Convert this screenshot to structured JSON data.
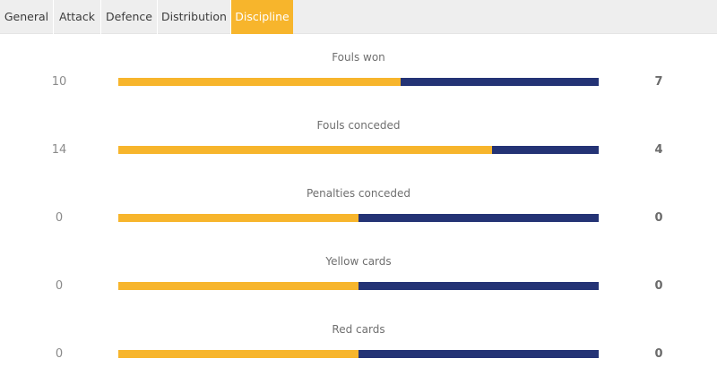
{
  "tabs": [
    {
      "label": "General",
      "active": false
    },
    {
      "label": "Attack",
      "active": false
    },
    {
      "label": "Defence",
      "active": false
    },
    {
      "label": "Distribution",
      "active": false
    },
    {
      "label": "Discipline",
      "active": true
    }
  ],
  "colors": {
    "home": "#f7b52c",
    "away": "#243375",
    "tab_active": "#f7b52c"
  },
  "stats": [
    {
      "label": "Fouls won",
      "home": "10",
      "away": "7",
      "home_share": 0.588
    },
    {
      "label": "Fouls conceded",
      "home": "14",
      "away": "4",
      "home_share": 0.778
    },
    {
      "label": "Penalties conceded",
      "home": "0",
      "away": "0",
      "home_share": 0.5
    },
    {
      "label": "Yellow cards",
      "home": "0",
      "away": "0",
      "home_share": 0.5
    },
    {
      "label": "Red cards",
      "home": "0",
      "away": "0",
      "home_share": 0.5
    }
  ]
}
